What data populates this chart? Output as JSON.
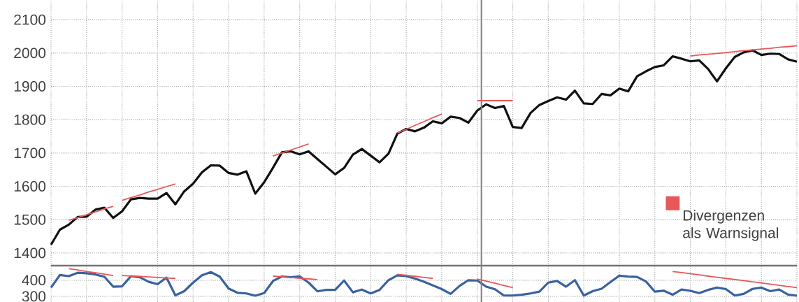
{
  "chart_data": [
    {
      "type": "line",
      "ylim": [
        1362,
        2159
      ],
      "categories": [
        null,
        null,
        null,
        null,
        null,
        null,
        null,
        null,
        null,
        null,
        null,
        null,
        null,
        null,
        null,
        null,
        null,
        null,
        null,
        null,
        null,
        null,
        null,
        null,
        null,
        null,
        null,
        null,
        null,
        null,
        null,
        null,
        null,
        null,
        null,
        null,
        null,
        null,
        null,
        null,
        null,
        null,
        null,
        null,
        null,
        null,
        null,
        null,
        null,
        null,
        null,
        null,
        null,
        null,
        null,
        null,
        null,
        null,
        null,
        null,
        null,
        null,
        null,
        null,
        null,
        null,
        null,
        null,
        null,
        null,
        null,
        null,
        null,
        null,
        null,
        null,
        null,
        null,
        null,
        null,
        null,
        null,
        null,
        null,
        null
      ],
      "yticks": [
        1400,
        1500,
        1600,
        1700,
        1800,
        1900,
        2000,
        2100
      ],
      "tick_labels": "y",
      "grid": true,
      "legend": "bottom right",
      "series": [
        {
          "color": "#111111",
          "values": [
            1425,
            1470,
            1485,
            1508,
            1509,
            1530,
            1536,
            1505,
            1525,
            1561,
            1565,
            1563,
            1563,
            1580,
            1546,
            1585,
            1608,
            1642,
            1663,
            1662,
            1640,
            1635,
            1645,
            1578,
            1612,
            1656,
            1702,
            1705,
            1696,
            1705,
            1682,
            1659,
            1636,
            1655,
            1695,
            1712,
            1692,
            1672,
            1698,
            1758,
            1772,
            1765,
            1776,
            1795,
            1789,
            1809,
            1805,
            1791,
            1827,
            1846,
            1835,
            1841,
            1778,
            1775,
            1820,
            1844,
            1856,
            1867,
            1860,
            1887,
            1849,
            1847,
            1877,
            1873,
            1893,
            1885,
            1930,
            1945,
            1958,
            1963,
            1990,
            1983,
            1975,
            1978,
            1952,
            1915,
            1954,
            1988,
            2002,
            2008,
            1994,
            1998,
            1997,
            1981,
            1974
          ]
        },
        {
          "name": "Divergenzen als Warnsignal",
          "color": "#e8585a",
          "values": [
            null,
            null,
            1498,
            1506,
            1515,
            1523,
            1532,
            1540,
            null,
            null,
            null,
            null,
            null,
            null,
            null,
            null,
            null,
            null,
            null,
            null,
            null,
            null,
            null,
            null,
            null,
            null,
            null,
            null,
            null,
            null,
            null,
            null,
            null,
            null,
            null,
            null,
            null,
            null,
            null,
            null,
            null,
            null,
            null,
            null,
            null,
            null,
            null,
            null,
            null,
            null,
            null,
            null,
            null,
            null,
            null,
            null,
            null,
            null,
            null,
            null,
            null,
            null,
            null,
            null,
            null,
            null,
            null,
            null,
            null,
            null,
            null,
            null,
            null,
            null,
            null,
            null,
            null,
            null,
            null,
            null,
            null,
            null,
            null,
            null,
            null
          ]
        },
        {
          "color": "#e8585a",
          "values": [
            null,
            null,
            null,
            null,
            null,
            null,
            null,
            null,
            1558,
            1566,
            1574,
            1583,
            1591,
            1599,
            1607,
            null,
            null,
            null,
            null,
            null,
            null,
            null,
            null,
            null,
            null,
            null,
            null,
            null,
            null,
            null,
            null,
            null,
            null,
            null,
            null,
            null,
            null,
            null,
            null,
            null,
            null,
            null,
            null,
            null,
            null,
            null,
            null,
            null,
            null,
            null,
            null,
            null,
            null,
            null,
            null,
            null,
            null,
            null,
            null,
            null,
            null,
            null,
            null,
            null,
            null,
            null,
            null,
            null,
            null,
            null,
            null,
            null,
            null,
            null,
            null,
            null,
            null,
            null,
            null,
            null,
            null,
            null,
            null,
            null,
            null
          ]
        },
        {
          "color": "#e8585a",
          "values": [
            null,
            null,
            null,
            null,
            null,
            null,
            null,
            null,
            null,
            null,
            null,
            null,
            null,
            null,
            null,
            null,
            null,
            null,
            null,
            null,
            null,
            null,
            null,
            null,
            null,
            1691,
            1700,
            1709,
            1718,
            1727,
            null,
            null,
            null,
            null,
            null,
            null,
            null,
            null,
            null,
            null,
            null,
            null,
            null,
            null,
            null,
            null,
            null,
            null,
            null,
            null,
            null,
            null,
            null,
            null,
            null,
            null,
            null,
            null,
            null,
            null,
            null,
            null,
            null,
            null,
            null,
            null,
            null,
            null,
            null,
            null,
            null,
            null,
            null,
            null,
            null,
            null,
            null,
            null,
            null,
            null,
            null,
            null,
            null,
            null,
            null
          ]
        },
        {
          "color": "#e8585a",
          "values": [
            null,
            null,
            null,
            null,
            null,
            null,
            null,
            null,
            null,
            null,
            null,
            null,
            null,
            null,
            null,
            null,
            null,
            null,
            null,
            null,
            null,
            null,
            null,
            null,
            null,
            null,
            null,
            null,
            null,
            null,
            null,
            null,
            null,
            null,
            null,
            null,
            null,
            null,
            null,
            1760,
            1771,
            1783,
            1794,
            1806,
            1817,
            null,
            null,
            null,
            null,
            null,
            null,
            null,
            null,
            null,
            null,
            null,
            null,
            null,
            null,
            null,
            null,
            null,
            null,
            null,
            null,
            null,
            null,
            null,
            null,
            null,
            null,
            null,
            null,
            null,
            null,
            null,
            null,
            null,
            null,
            null,
            null,
            null,
            null,
            null,
            null
          ]
        },
        {
          "color": "#e8585a",
          "values": [
            null,
            null,
            null,
            null,
            null,
            null,
            null,
            null,
            null,
            null,
            null,
            null,
            null,
            null,
            null,
            null,
            null,
            null,
            null,
            null,
            null,
            null,
            null,
            null,
            null,
            null,
            null,
            null,
            null,
            null,
            null,
            null,
            null,
            null,
            null,
            null,
            null,
            null,
            null,
            null,
            null,
            null,
            null,
            null,
            null,
            null,
            null,
            null,
            1857,
            1857,
            1857,
            1857,
            1857,
            null,
            null,
            null,
            null,
            null,
            null,
            null,
            null,
            null,
            null,
            null,
            null,
            null,
            null,
            null,
            null,
            null,
            null,
            null,
            null,
            null,
            null,
            null,
            null,
            null,
            null,
            null,
            null,
            null,
            null,
            null,
            null
          ]
        },
        {
          "color": "#e8585a",
          "values": [
            null,
            null,
            null,
            null,
            null,
            null,
            null,
            null,
            null,
            null,
            null,
            null,
            null,
            null,
            null,
            null,
            null,
            null,
            null,
            null,
            null,
            null,
            null,
            null,
            null,
            null,
            null,
            null,
            null,
            null,
            null,
            null,
            null,
            null,
            null,
            null,
            null,
            null,
            null,
            null,
            null,
            null,
            null,
            null,
            null,
            null,
            null,
            null,
            null,
            null,
            null,
            null,
            null,
            null,
            null,
            null,
            null,
            null,
            null,
            null,
            null,
            null,
            null,
            null,
            null,
            null,
            null,
            null,
            null,
            null,
            null,
            null,
            1991,
            1994,
            1996,
            1999,
            2001,
            2004,
            2007,
            2009,
            2012,
            2014,
            2017,
            2019,
            2022
          ]
        }
      ]
    },
    {
      "type": "line",
      "ylim": [
        265,
        490
      ],
      "categories": [
        null,
        null,
        null,
        null,
        null,
        null,
        null,
        null,
        null,
        null,
        null,
        null,
        null,
        null,
        null,
        null,
        null,
        null,
        null,
        null,
        null,
        null,
        null,
        null,
        null,
        null,
        null,
        null,
        null,
        null,
        null,
        null,
        null,
        null,
        null,
        null,
        null,
        null,
        null,
        null,
        null,
        null,
        null,
        null,
        null,
        null,
        null,
        null,
        null,
        null,
        null,
        null,
        null,
        null,
        null,
        null,
        null,
        null,
        null,
        null,
        null,
        null,
        null,
        null,
        null,
        null,
        null,
        null,
        null,
        null,
        null,
        null,
        null,
        null,
        null,
        null,
        null,
        null,
        null,
        null,
        null,
        null,
        null,
        null,
        null
      ],
      "yticks": [
        300,
        400
      ],
      "tick_labels": "y",
      "grid": true,
      "series": [
        {
          "color": "#3a62a0",
          "values": [
            354,
            432,
            425,
            446,
            443,
            435,
            422,
            360,
            362,
            425,
            418,
            390,
            375,
            416,
            306,
            332,
            385,
            430,
            450,
            422,
            348,
            322,
            318,
            304,
            320,
            395,
            423,
            418,
            424,
            385,
            331,
            340,
            340,
            398,
            325,
            342,
            318,
            340,
            400,
            430,
            425,
            410,
            390,
            368,
            345,
            315,
            364,
            400,
            398,
            360,
            344,
            305,
            305,
            310,
            318,
            329,
            385,
            395,
            360,
            400,
            305,
            332,
            347,
            388,
            428,
            422,
            420,
            392,
            329,
            335,
            310,
            342,
            334,
            320,
            340,
            354,
            345,
            305,
            315,
            346,
            354,
            332,
            342,
            311,
            304
          ]
        },
        {
          "color": "#e8585a",
          "values": [
            null,
            null,
            471,
            463,
            454,
            446,
            437,
            429,
            null,
            null,
            null,
            null,
            null,
            null,
            null,
            null,
            null,
            null,
            null,
            null,
            null,
            null,
            null,
            null,
            null,
            null,
            null,
            null,
            null,
            null,
            null,
            null,
            null,
            null,
            null,
            null,
            null,
            null,
            null,
            null,
            null,
            null,
            null,
            null,
            null,
            null,
            null,
            null,
            null,
            null,
            null,
            null,
            null,
            null,
            null,
            null,
            null,
            null,
            null,
            null,
            null,
            null,
            null,
            null,
            null,
            null,
            null,
            null,
            null,
            null,
            null,
            null,
            null,
            null,
            null,
            null,
            null,
            null,
            null,
            null,
            null,
            null,
            null,
            null,
            null
          ]
        },
        {
          "color": "#e8585a",
          "values": [
            null,
            null,
            null,
            null,
            null,
            null,
            null,
            null,
            429,
            426,
            423,
            420,
            417,
            414,
            411,
            null,
            null,
            null,
            null,
            null,
            null,
            null,
            null,
            null,
            null,
            null,
            null,
            null,
            null,
            null,
            null,
            null,
            null,
            null,
            null,
            null,
            null,
            null,
            null,
            null,
            null,
            null,
            null,
            null,
            null,
            null,
            null,
            null,
            null,
            null,
            null,
            null,
            null,
            null,
            null,
            null,
            null,
            null,
            null,
            null,
            null,
            null,
            null,
            null,
            null,
            null,
            null,
            null,
            null,
            null,
            null,
            null,
            null,
            null,
            null,
            null,
            null,
            null,
            null,
            null,
            null,
            null,
            null,
            null,
            null
          ]
        },
        {
          "color": "#e8585a",
          "values": [
            null,
            null,
            null,
            null,
            null,
            null,
            null,
            null,
            null,
            null,
            null,
            null,
            null,
            null,
            null,
            null,
            null,
            null,
            null,
            null,
            null,
            null,
            null,
            null,
            null,
            425,
            421,
            417,
            412,
            408,
            404,
            null,
            null,
            null,
            null,
            null,
            null,
            null,
            null,
            null,
            null,
            null,
            null,
            null,
            null,
            null,
            null,
            null,
            null,
            null,
            null,
            null,
            null,
            null,
            null,
            null,
            null,
            null,
            null,
            null,
            null,
            null,
            null,
            null,
            null,
            null,
            null,
            null,
            null,
            null,
            null,
            null,
            null,
            null,
            null,
            null,
            null,
            null,
            null,
            null,
            null,
            null,
            null,
            null,
            null
          ]
        },
        {
          "color": "#e8585a",
          "values": [
            null,
            null,
            null,
            null,
            null,
            null,
            null,
            null,
            null,
            null,
            null,
            null,
            null,
            null,
            null,
            null,
            null,
            null,
            null,
            null,
            null,
            null,
            null,
            null,
            null,
            null,
            null,
            null,
            null,
            null,
            null,
            null,
            null,
            null,
            null,
            null,
            null,
            null,
            null,
            436,
            430,
            424,
            417,
            411,
            null,
            null,
            null,
            null,
            null,
            null,
            null,
            null,
            null,
            null,
            null,
            null,
            null,
            null,
            null,
            null,
            null,
            null,
            null,
            null,
            null,
            null,
            null,
            null,
            null,
            null,
            null,
            null,
            null,
            null,
            null,
            null,
            null,
            null,
            null,
            null,
            null,
            null,
            null,
            null,
            null
          ]
        },
        {
          "color": "#e8585a",
          "values": [
            null,
            null,
            null,
            null,
            null,
            null,
            null,
            null,
            null,
            null,
            null,
            null,
            null,
            null,
            null,
            null,
            null,
            null,
            null,
            null,
            null,
            null,
            null,
            null,
            null,
            null,
            null,
            null,
            null,
            null,
            null,
            null,
            null,
            null,
            null,
            null,
            null,
            null,
            null,
            null,
            null,
            null,
            null,
            null,
            null,
            null,
            null,
            null,
            407,
            394,
            381,
            367,
            354,
            null,
            null,
            null,
            null,
            null,
            null,
            null,
            null,
            null,
            null,
            null,
            null,
            null,
            null,
            null,
            null,
            null,
            null,
            null,
            null,
            null,
            null,
            null,
            null,
            null,
            null,
            null,
            null,
            null,
            null,
            null,
            null
          ]
        },
        {
          "color": "#e8585a",
          "values": [
            null,
            null,
            null,
            null,
            null,
            null,
            null,
            null,
            null,
            null,
            null,
            null,
            null,
            null,
            null,
            null,
            null,
            null,
            null,
            null,
            null,
            null,
            null,
            null,
            null,
            null,
            null,
            null,
            null,
            null,
            null,
            null,
            null,
            null,
            null,
            null,
            null,
            null,
            null,
            null,
            null,
            null,
            null,
            null,
            null,
            null,
            null,
            null,
            null,
            null,
            null,
            null,
            null,
            null,
            null,
            null,
            null,
            null,
            null,
            null,
            null,
            null,
            null,
            null,
            null,
            null,
            null,
            null,
            null,
            null,
            454,
            447,
            440,
            433,
            425,
            418,
            411,
            404,
            397,
            390,
            383,
            376,
            368,
            361,
            354
          ]
        }
      ]
    }
  ]
}
